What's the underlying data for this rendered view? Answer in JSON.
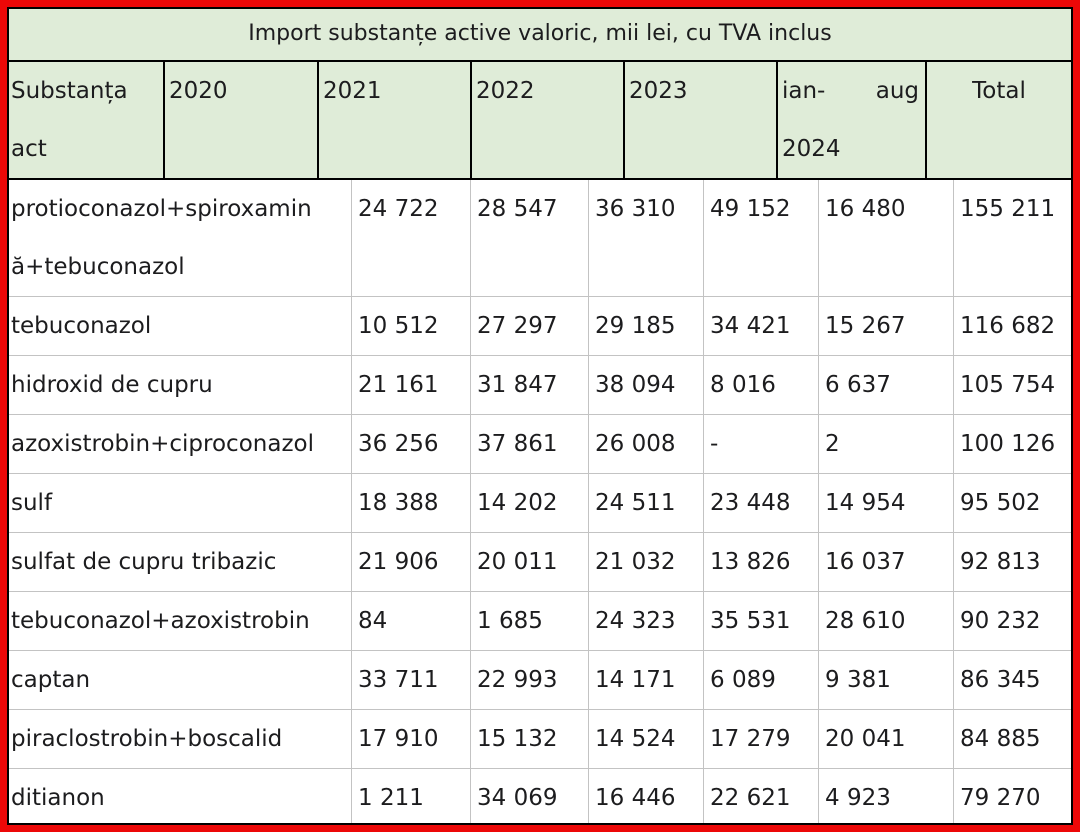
{
  "title": "Import substanțe active valoric, mii lei, cu TVA inclus",
  "colors": {
    "frame_red": "#ec0808",
    "header_green": "#dfecd8",
    "grid_gray": "#c3c3c3",
    "border_black": "#000000",
    "text": "#1c1c1e"
  },
  "table": {
    "header": {
      "col_substance": {
        "line1": "Substanța",
        "line2": "act"
      },
      "years": [
        "2020",
        "2021",
        "2022",
        "2023"
      ],
      "period": {
        "part1": "ian-",
        "part2": "aug",
        "line2": "2024"
      },
      "total": "Total"
    },
    "rows": [
      {
        "name_lines": [
          "protioconazol+spiroxamin",
          "ă+tebuconazol"
        ],
        "values": [
          "24 722",
          "28 547",
          "36 310",
          "49 152",
          "16 480",
          "155 211"
        ]
      },
      {
        "name_lines": [
          "tebuconazol"
        ],
        "values": [
          "10 512",
          "27 297",
          "29 185",
          "34 421",
          "15 267",
          "116 682"
        ]
      },
      {
        "name_lines": [
          "hidroxid de cupru"
        ],
        "values": [
          "21 161",
          "31 847",
          "38 094",
          "8 016",
          "6 637",
          "105 754"
        ]
      },
      {
        "name_lines": [
          "azoxistrobin+ciproconazol"
        ],
        "values": [
          "36 256",
          "37 861",
          "26 008",
          "-",
          "2",
          "100 126"
        ]
      },
      {
        "name_lines": [
          "sulf"
        ],
        "values": [
          "18 388",
          "14 202",
          "24 511",
          "23 448",
          "14 954",
          "95 502"
        ]
      },
      {
        "name_lines": [
          "sulfat de cupru tribazic"
        ],
        "values": [
          "21 906",
          "20 011",
          "21 032",
          "13 826",
          "16 037",
          "92 813"
        ]
      },
      {
        "name_lines": [
          "tebuconazol+azoxistrobin"
        ],
        "values": [
          "84",
          "1 685",
          "24 323",
          "35 531",
          "28 610",
          "90 232"
        ]
      },
      {
        "name_lines": [
          "captan"
        ],
        "values": [
          "33 711",
          "22 993",
          "14 171",
          "6 089",
          "9 381",
          "86 345"
        ]
      },
      {
        "name_lines": [
          "piraclostrobin+boscalid"
        ],
        "values": [
          "17 910",
          "15 132",
          "14 524",
          "17 279",
          "20 041",
          "84 885"
        ]
      },
      {
        "name_lines": [
          "ditianon"
        ],
        "values": [
          "1 211",
          "34 069",
          "16 446",
          "22 621",
          "4 923",
          "79 270"
        ]
      }
    ]
  },
  "chart_data": {
    "type": "table",
    "title": "Import substanțe active valoric, mii lei, cu TVA inclus",
    "units": "mii lei",
    "missing_marker": "-",
    "columns": [
      "Substanța act",
      "2020",
      "2021",
      "2022",
      "2023",
      "ian-aug 2024",
      "Total"
    ],
    "rows": [
      [
        "protioconazol+spiroxamină+tebuconazol",
        24722,
        28547,
        36310,
        49152,
        16480,
        155211
      ],
      [
        "tebuconazol",
        10512,
        27297,
        29185,
        34421,
        15267,
        116682
      ],
      [
        "hidroxid de cupru",
        21161,
        31847,
        38094,
        8016,
        6637,
        105754
      ],
      [
        "azoxistrobin+ciproconazol",
        36256,
        37861,
        26008,
        null,
        2,
        100126
      ],
      [
        "sulf",
        18388,
        14202,
        24511,
        23448,
        14954,
        95502
      ],
      [
        "sulfat de cupru tribazic",
        21906,
        20011,
        21032,
        13826,
        16037,
        92813
      ],
      [
        "tebuconazol+azoxistrobin",
        84,
        1685,
        24323,
        35531,
        28610,
        90232
      ],
      [
        "captan",
        33711,
        22993,
        14171,
        6089,
        9381,
        86345
      ],
      [
        "piraclostrobin+boscalid",
        17910,
        15132,
        14524,
        17279,
        20041,
        84885
      ],
      [
        "ditianon",
        1211,
        34069,
        16446,
        22621,
        4923,
        79270
      ]
    ]
  }
}
